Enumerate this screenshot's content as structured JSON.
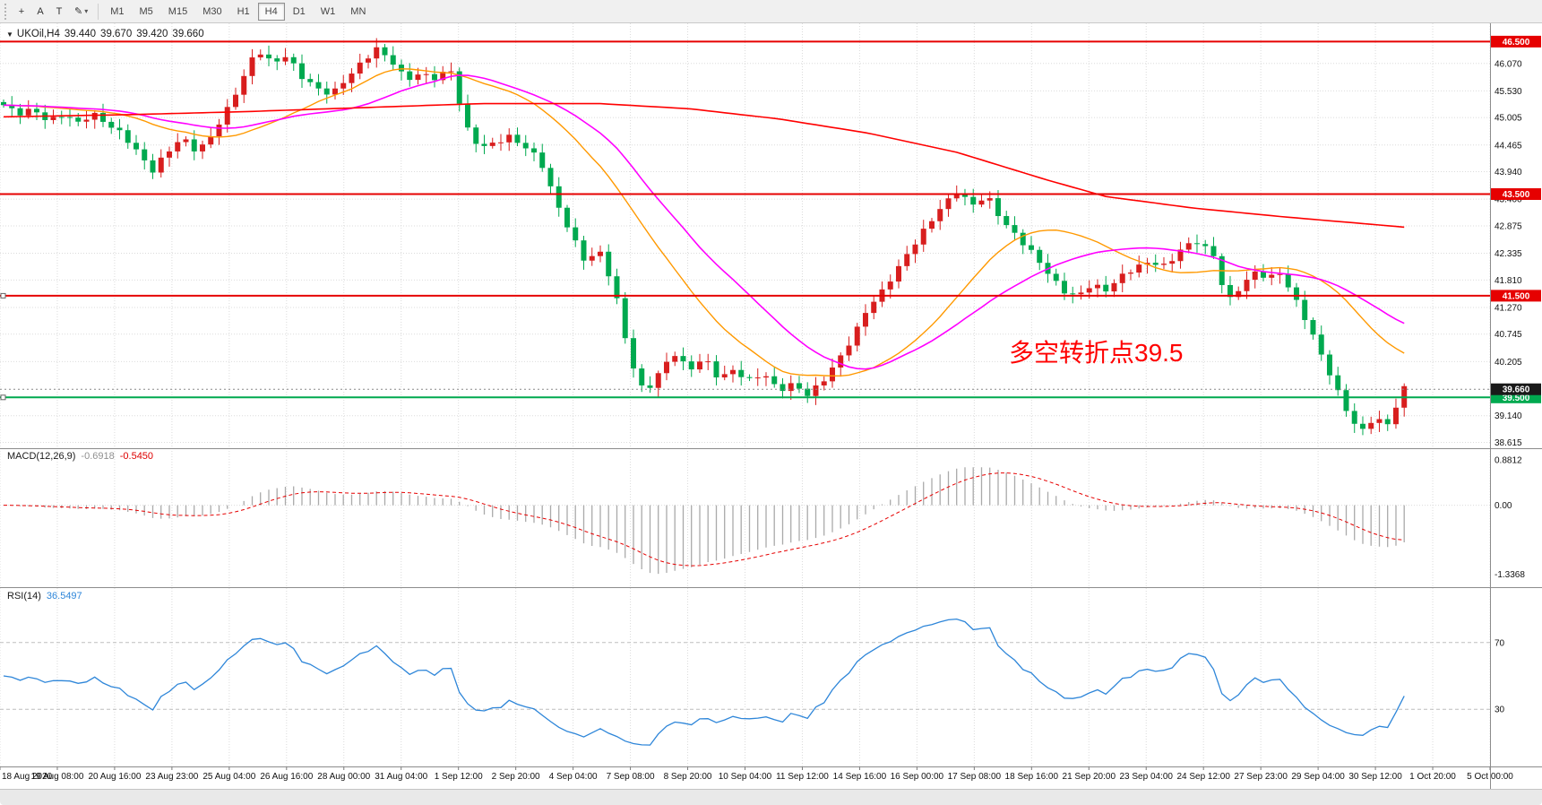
{
  "toolbar": {
    "crosshair_glyph": "+",
    "text_tool_label": "A",
    "label_tool_label": "T",
    "draw_glyph": "✎",
    "caret_glyph": "▾",
    "timeframes": [
      {
        "label": "M1",
        "active": false
      },
      {
        "label": "M5",
        "active": false
      },
      {
        "label": "M15",
        "active": false
      },
      {
        "label": "M30",
        "active": false
      },
      {
        "label": "H1",
        "active": false
      },
      {
        "label": "H4",
        "active": true
      },
      {
        "label": "D1",
        "active": false
      },
      {
        "label": "W1",
        "active": false
      },
      {
        "label": "MN",
        "active": false
      }
    ]
  },
  "chart_header": {
    "dropdown_glyph": "▼",
    "symbol_period": "UKOil,H4",
    "open": "39.440",
    "high": "39.670",
    "low": "39.420",
    "close": "39.660"
  },
  "annotation": {
    "text": "多空转折点39.5",
    "color": "#ff0000"
  },
  "indicators": {
    "macd": {
      "name": "MACD(12,26,9)",
      "value_main": "-0.6918",
      "value_signal": "-0.5450",
      "scale_labels": [
        {
          "v": 0.8812,
          "label": "0.8812"
        },
        {
          "v": 0,
          "label": "0.00"
        },
        {
          "v": -1.3368,
          "label": "-1.3368"
        }
      ]
    },
    "rsi": {
      "name": "RSI(14)",
      "value": "36.5497",
      "levels": [
        {
          "v": 70,
          "label": "70"
        },
        {
          "v": 30,
          "label": "30"
        }
      ]
    }
  },
  "price_axis": {
    "grid_labels": [
      "46.070",
      "45.530",
      "45.005",
      "44.465",
      "43.940",
      "43.400",
      "42.875",
      "42.335",
      "41.810",
      "41.270",
      "40.745",
      "40.205",
      "39.140",
      "38.615"
    ],
    "lines": [
      {
        "price": 46.5,
        "label": "46.500",
        "color": "#e60000",
        "handle": false
      },
      {
        "price": 43.5,
        "label": "43.500",
        "color": "#e60000",
        "handle": false
      },
      {
        "price": 41.5,
        "label": "41.500",
        "color": "#e60000",
        "handle": true
      },
      {
        "price": 39.5,
        "label": "39.500",
        "color": "#00a94f",
        "handle": true
      }
    ],
    "current_price": {
      "value": 39.66,
      "label": "39.660",
      "badge": "#1a1a1a"
    }
  },
  "time_axis": {
    "labels": [
      "18 Aug 2020",
      "19 Aug 08:00",
      "20 Aug 16:00",
      "23 Aug 23:00",
      "25 Aug 04:00",
      "26 Aug 16:00",
      "28 Aug 00:00",
      "31 Aug 04:00",
      "1 Sep 12:00",
      "2 Sep 20:00",
      "4 Sep 04:00",
      "7 Sep 08:00",
      "8 Sep 20:00",
      "10 Sep 04:00",
      "11 Sep 12:00",
      "14 Sep 16:00",
      "16 Sep 00:00",
      "17 Sep 08:00",
      "18 Sep 16:00",
      "21 Sep 20:00",
      "23 Sep 04:00",
      "24 Sep 12:00",
      "27 Sep 23:00",
      "29 Sep 04:00",
      "30 Sep 12:00",
      "1 Oct 20:00",
      "5 Oct 00:00"
    ]
  },
  "chart_data": {
    "type": "candlestick",
    "symbol": "UKOil",
    "timeframe": "H4",
    "price_range_top": 46.86,
    "price_range_bottom": 38.5,
    "candle_count": 170,
    "data_span_fraction": 0.94,
    "price_path": [
      [
        0,
        45.25
      ],
      [
        0.01,
        45.05
      ],
      [
        0.02,
        45.15
      ],
      [
        0.03,
        44.95
      ],
      [
        0.04,
        45.1
      ],
      [
        0.05,
        44.9
      ],
      [
        0.06,
        45.05
      ],
      [
        0.07,
        44.85
      ],
      [
        0.08,
        44.7
      ],
      [
        0.09,
        44.35
      ],
      [
        0.1,
        43.95
      ],
      [
        0.11,
        44.3
      ],
      [
        0.12,
        44.6
      ],
      [
        0.13,
        44.35
      ],
      [
        0.14,
        44.7
      ],
      [
        0.15,
        45.15
      ],
      [
        0.16,
        45.7
      ],
      [
        0.17,
        46.35
      ],
      [
        0.18,
        46.1
      ],
      [
        0.19,
        46.25
      ],
      [
        0.2,
        45.8
      ],
      [
        0.21,
        45.55
      ],
      [
        0.22,
        45.45
      ],
      [
        0.23,
        45.8
      ],
      [
        0.24,
        46.1
      ],
      [
        0.25,
        46.35
      ],
      [
        0.26,
        46.1
      ],
      [
        0.27,
        45.75
      ],
      [
        0.28,
        45.9
      ],
      [
        0.29,
        45.8
      ],
      [
        0.3,
        45.95
      ],
      [
        0.31,
        44.8
      ],
      [
        0.32,
        44.4
      ],
      [
        0.33,
        44.55
      ],
      [
        0.34,
        44.65
      ],
      [
        0.35,
        44.4
      ],
      [
        0.36,
        44.15
      ],
      [
        0.37,
        43.4
      ],
      [
        0.38,
        42.8
      ],
      [
        0.39,
        42.2
      ],
      [
        0.4,
        42.35
      ],
      [
        0.41,
        41.6
      ],
      [
        0.42,
        40.3
      ],
      [
        0.43,
        39.6
      ],
      [
        0.44,
        40.0
      ],
      [
        0.45,
        40.35
      ],
      [
        0.46,
        40.0
      ],
      [
        0.47,
        40.3
      ],
      [
        0.48,
        39.9
      ],
      [
        0.49,
        40.05
      ],
      [
        0.5,
        39.8
      ],
      [
        0.51,
        39.95
      ],
      [
        0.52,
        39.65
      ],
      [
        0.53,
        39.8
      ],
      [
        0.54,
        39.55
      ],
      [
        0.55,
        39.8
      ],
      [
        0.56,
        40.2
      ],
      [
        0.57,
        40.7
      ],
      [
        0.58,
        41.3
      ],
      [
        0.59,
        41.6
      ],
      [
        0.6,
        42.0
      ],
      [
        0.61,
        42.45
      ],
      [
        0.62,
        42.9
      ],
      [
        0.63,
        43.3
      ],
      [
        0.64,
        43.55
      ],
      [
        0.65,
        43.25
      ],
      [
        0.66,
        43.45
      ],
      [
        0.67,
        43.0
      ],
      [
        0.68,
        42.7
      ],
      [
        0.69,
        42.35
      ],
      [
        0.7,
        41.95
      ],
      [
        0.71,
        41.6
      ],
      [
        0.72,
        41.5
      ],
      [
        0.73,
        41.75
      ],
      [
        0.74,
        41.6
      ],
      [
        0.75,
        41.85
      ],
      [
        0.76,
        42.05
      ],
      [
        0.77,
        42.2
      ],
      [
        0.78,
        42.1
      ],
      [
        0.79,
        42.4
      ],
      [
        0.8,
        42.55
      ],
      [
        0.81,
        42.35
      ],
      [
        0.815,
        42.2
      ],
      [
        0.82,
        41.35
      ],
      [
        0.83,
        41.7
      ],
      [
        0.84,
        41.95
      ],
      [
        0.85,
        41.8
      ],
      [
        0.855,
        42.0
      ],
      [
        0.865,
        41.55
      ],
      [
        0.875,
        41.0
      ],
      [
        0.885,
        40.3
      ],
      [
        0.895,
        39.6
      ],
      [
        0.905,
        39.0
      ],
      [
        0.912,
        38.85
      ],
      [
        0.92,
        39.15
      ],
      [
        0.928,
        38.95
      ],
      [
        0.934,
        39.3
      ],
      [
        0.94,
        39.66
      ]
    ],
    "ma_slow_red_path": [
      [
        0,
        45.02
      ],
      [
        0.08,
        45.06
      ],
      [
        0.16,
        45.12
      ],
      [
        0.24,
        45.2
      ],
      [
        0.32,
        45.28
      ],
      [
        0.4,
        45.28
      ],
      [
        0.46,
        45.18
      ],
      [
        0.52,
        44.98
      ],
      [
        0.58,
        44.7
      ],
      [
        0.64,
        44.32
      ],
      [
        0.7,
        43.78
      ],
      [
        0.74,
        43.45
      ],
      [
        0.8,
        43.22
      ],
      [
        0.86,
        43.05
      ],
      [
        0.9,
        42.95
      ],
      [
        0.94,
        42.85
      ]
    ],
    "ma_fast_period": 20,
    "ma_mid_period": 30,
    "macd_fast": 12,
    "macd_slow": 26,
    "macd_signal": 9,
    "rsi_period": 14,
    "colors": {
      "up": "#d81e1e",
      "down": "#00a94f",
      "ma_slow": "#ff0000",
      "ma_mid": "#ff00ff",
      "ma_fast": "#ff9900",
      "grid": "#dbdbdb",
      "rsi_line": "#2e86d9",
      "macd_hist": "#aaaaaa",
      "macd_signal": "#e60000",
      "separator": "#8c8c8c"
    }
  }
}
